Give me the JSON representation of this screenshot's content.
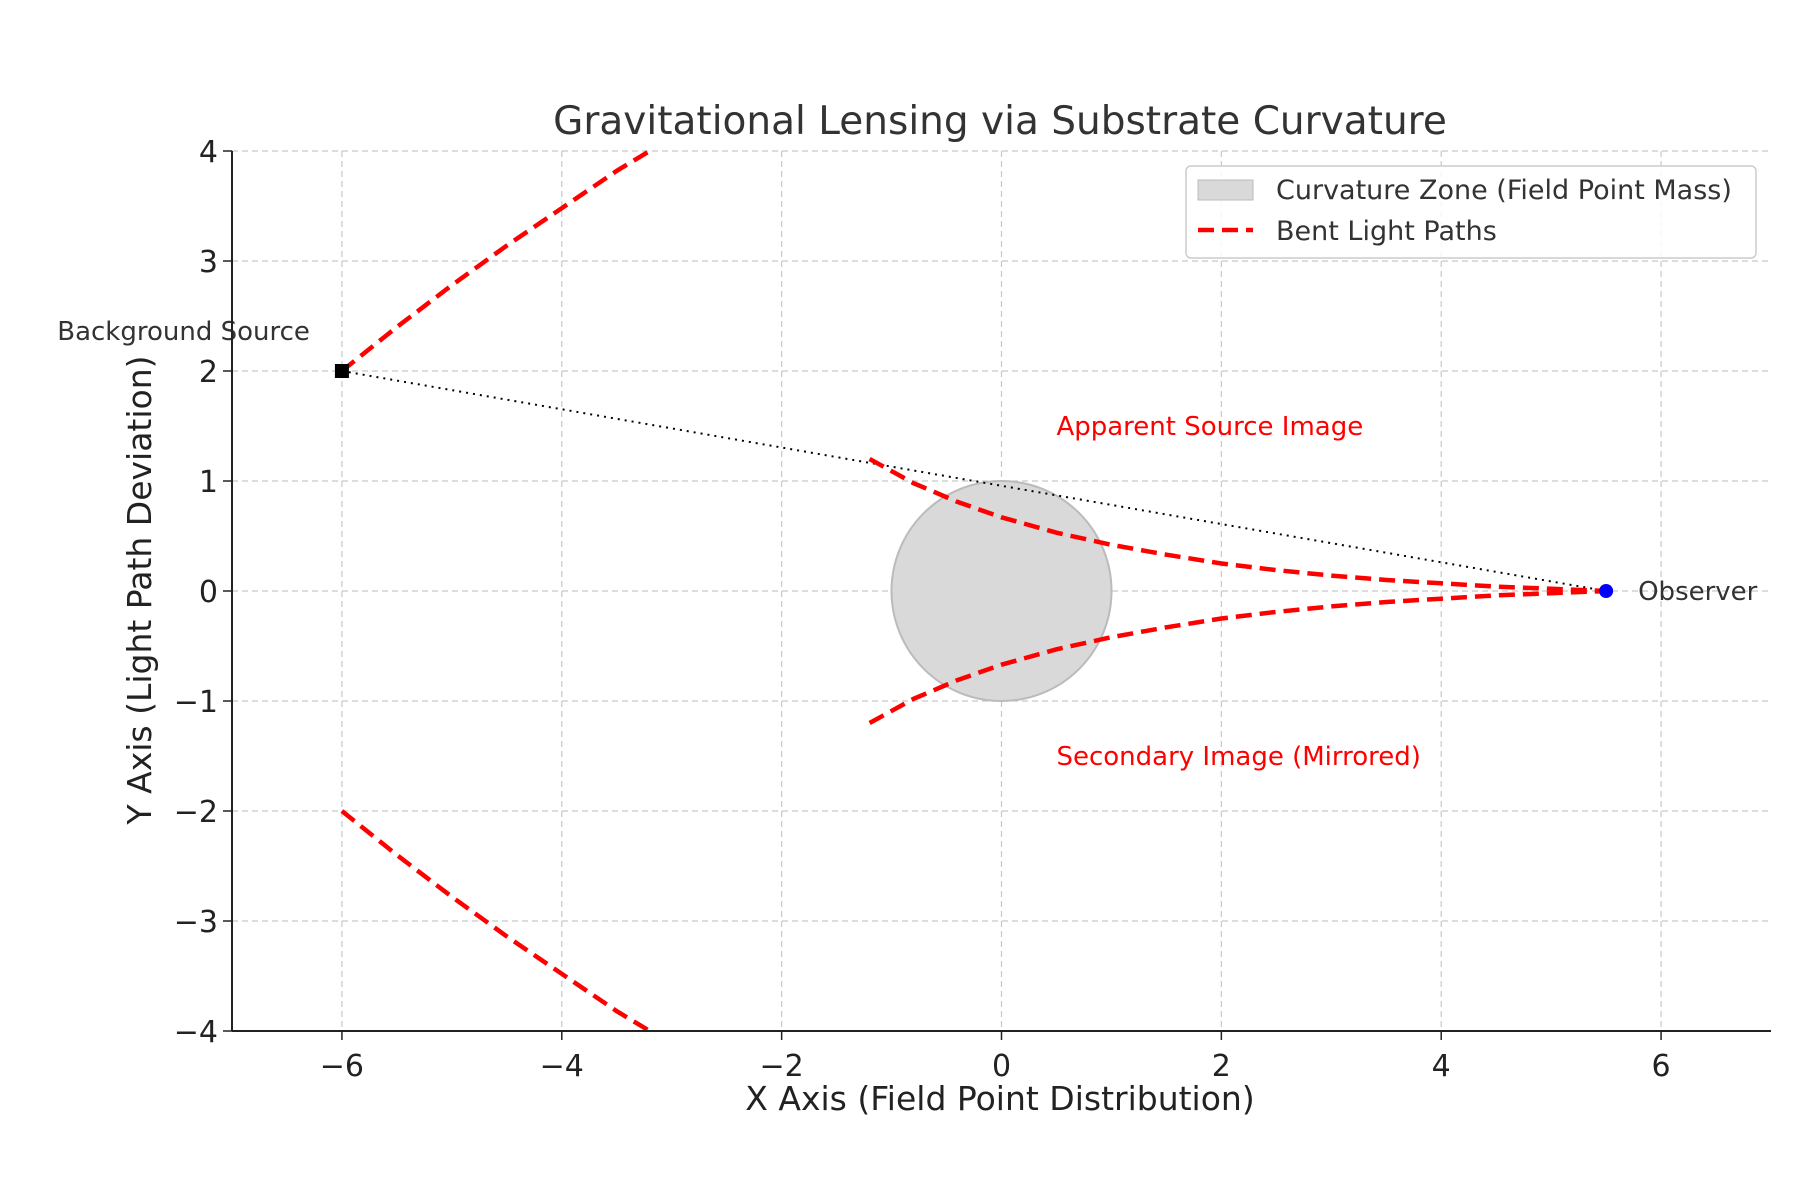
{
  "chart_data": {
    "type": "line",
    "title": "Gravitational Lensing via Substrate Curvature",
    "xlabel": "X Axis (Field Point Distribution)",
    "ylabel": "Y Axis (Light Path Deviation)",
    "xlim": [
      -7,
      7
    ],
    "ylim": [
      -4,
      4
    ],
    "xticks": [
      -6,
      -4,
      -2,
      0,
      2,
      4,
      6
    ],
    "yticks": [
      -4,
      -3,
      -2,
      -1,
      0,
      1,
      2,
      3,
      4
    ],
    "grid": true,
    "legend_position": "top-right",
    "legend": [
      {
        "label": "Curvature Zone (Field Point Mass)",
        "kind": "patch",
        "color": "#d9d9d9"
      },
      {
        "label": "Bent Light Paths",
        "kind": "dashed-line",
        "color": "#ff0000"
      }
    ],
    "curvature_zone": {
      "center": [
        0,
        0
      ],
      "radius": 1,
      "color": "#d9d9d9"
    },
    "series": [
      {
        "x": [
          -6,
          -5.5,
          -5,
          -4.5,
          -4,
          -3.5,
          -3.2
        ],
        "y": [
          2,
          2.4,
          2.78,
          3.14,
          3.48,
          3.82,
          4.0
        ]
      },
      {
        "x": [
          -6,
          -5.5,
          -5,
          -4.5,
          -4,
          -3.5,
          -3.2
        ],
        "y": [
          -2,
          -2.4,
          -2.78,
          -3.14,
          -3.48,
          -3.82,
          -4.0
        ]
      },
      {
        "x": [
          -1.2,
          -0.8,
          -0.4,
          0,
          0.5,
          1,
          1.5,
          2,
          2.5,
          3,
          3.5,
          4,
          4.5,
          5,
          5.5
        ],
        "y": [
          1.2,
          0.98,
          0.81,
          0.67,
          0.53,
          0.42,
          0.33,
          0.25,
          0.19,
          0.14,
          0.1,
          0.07,
          0.04,
          0.02,
          0.0
        ]
      },
      {
        "x": [
          -1.2,
          -0.8,
          -0.4,
          0,
          0.5,
          1,
          1.5,
          2,
          2.5,
          3,
          3.5,
          4,
          4.5,
          5,
          5.5
        ],
        "y": [
          -1.2,
          -0.98,
          -0.81,
          -0.67,
          -0.53,
          -0.42,
          -0.33,
          -0.25,
          -0.19,
          -0.14,
          -0.1,
          -0.07,
          -0.04,
          -0.02,
          0.0
        ]
      }
    ],
    "line_of_sight": {
      "from": [
        -6,
        2
      ],
      "to": [
        5.5,
        0
      ],
      "color": "#000000"
    },
    "points": [
      {
        "label": "Background Source",
        "x": -6,
        "y": 2,
        "marker": "square",
        "color": "#000000"
      },
      {
        "label": "Observer",
        "x": 5.5,
        "y": 0,
        "marker": "circle",
        "color": "#0000ff"
      }
    ],
    "annotations": [
      {
        "text": "Apparent Source Image",
        "x": 0.5,
        "y": 1.5,
        "color": "#ff0000"
      },
      {
        "text": "Secondary Image (Mirrored)",
        "x": 0.5,
        "y": -1.5,
        "color": "#ff0000"
      }
    ]
  }
}
